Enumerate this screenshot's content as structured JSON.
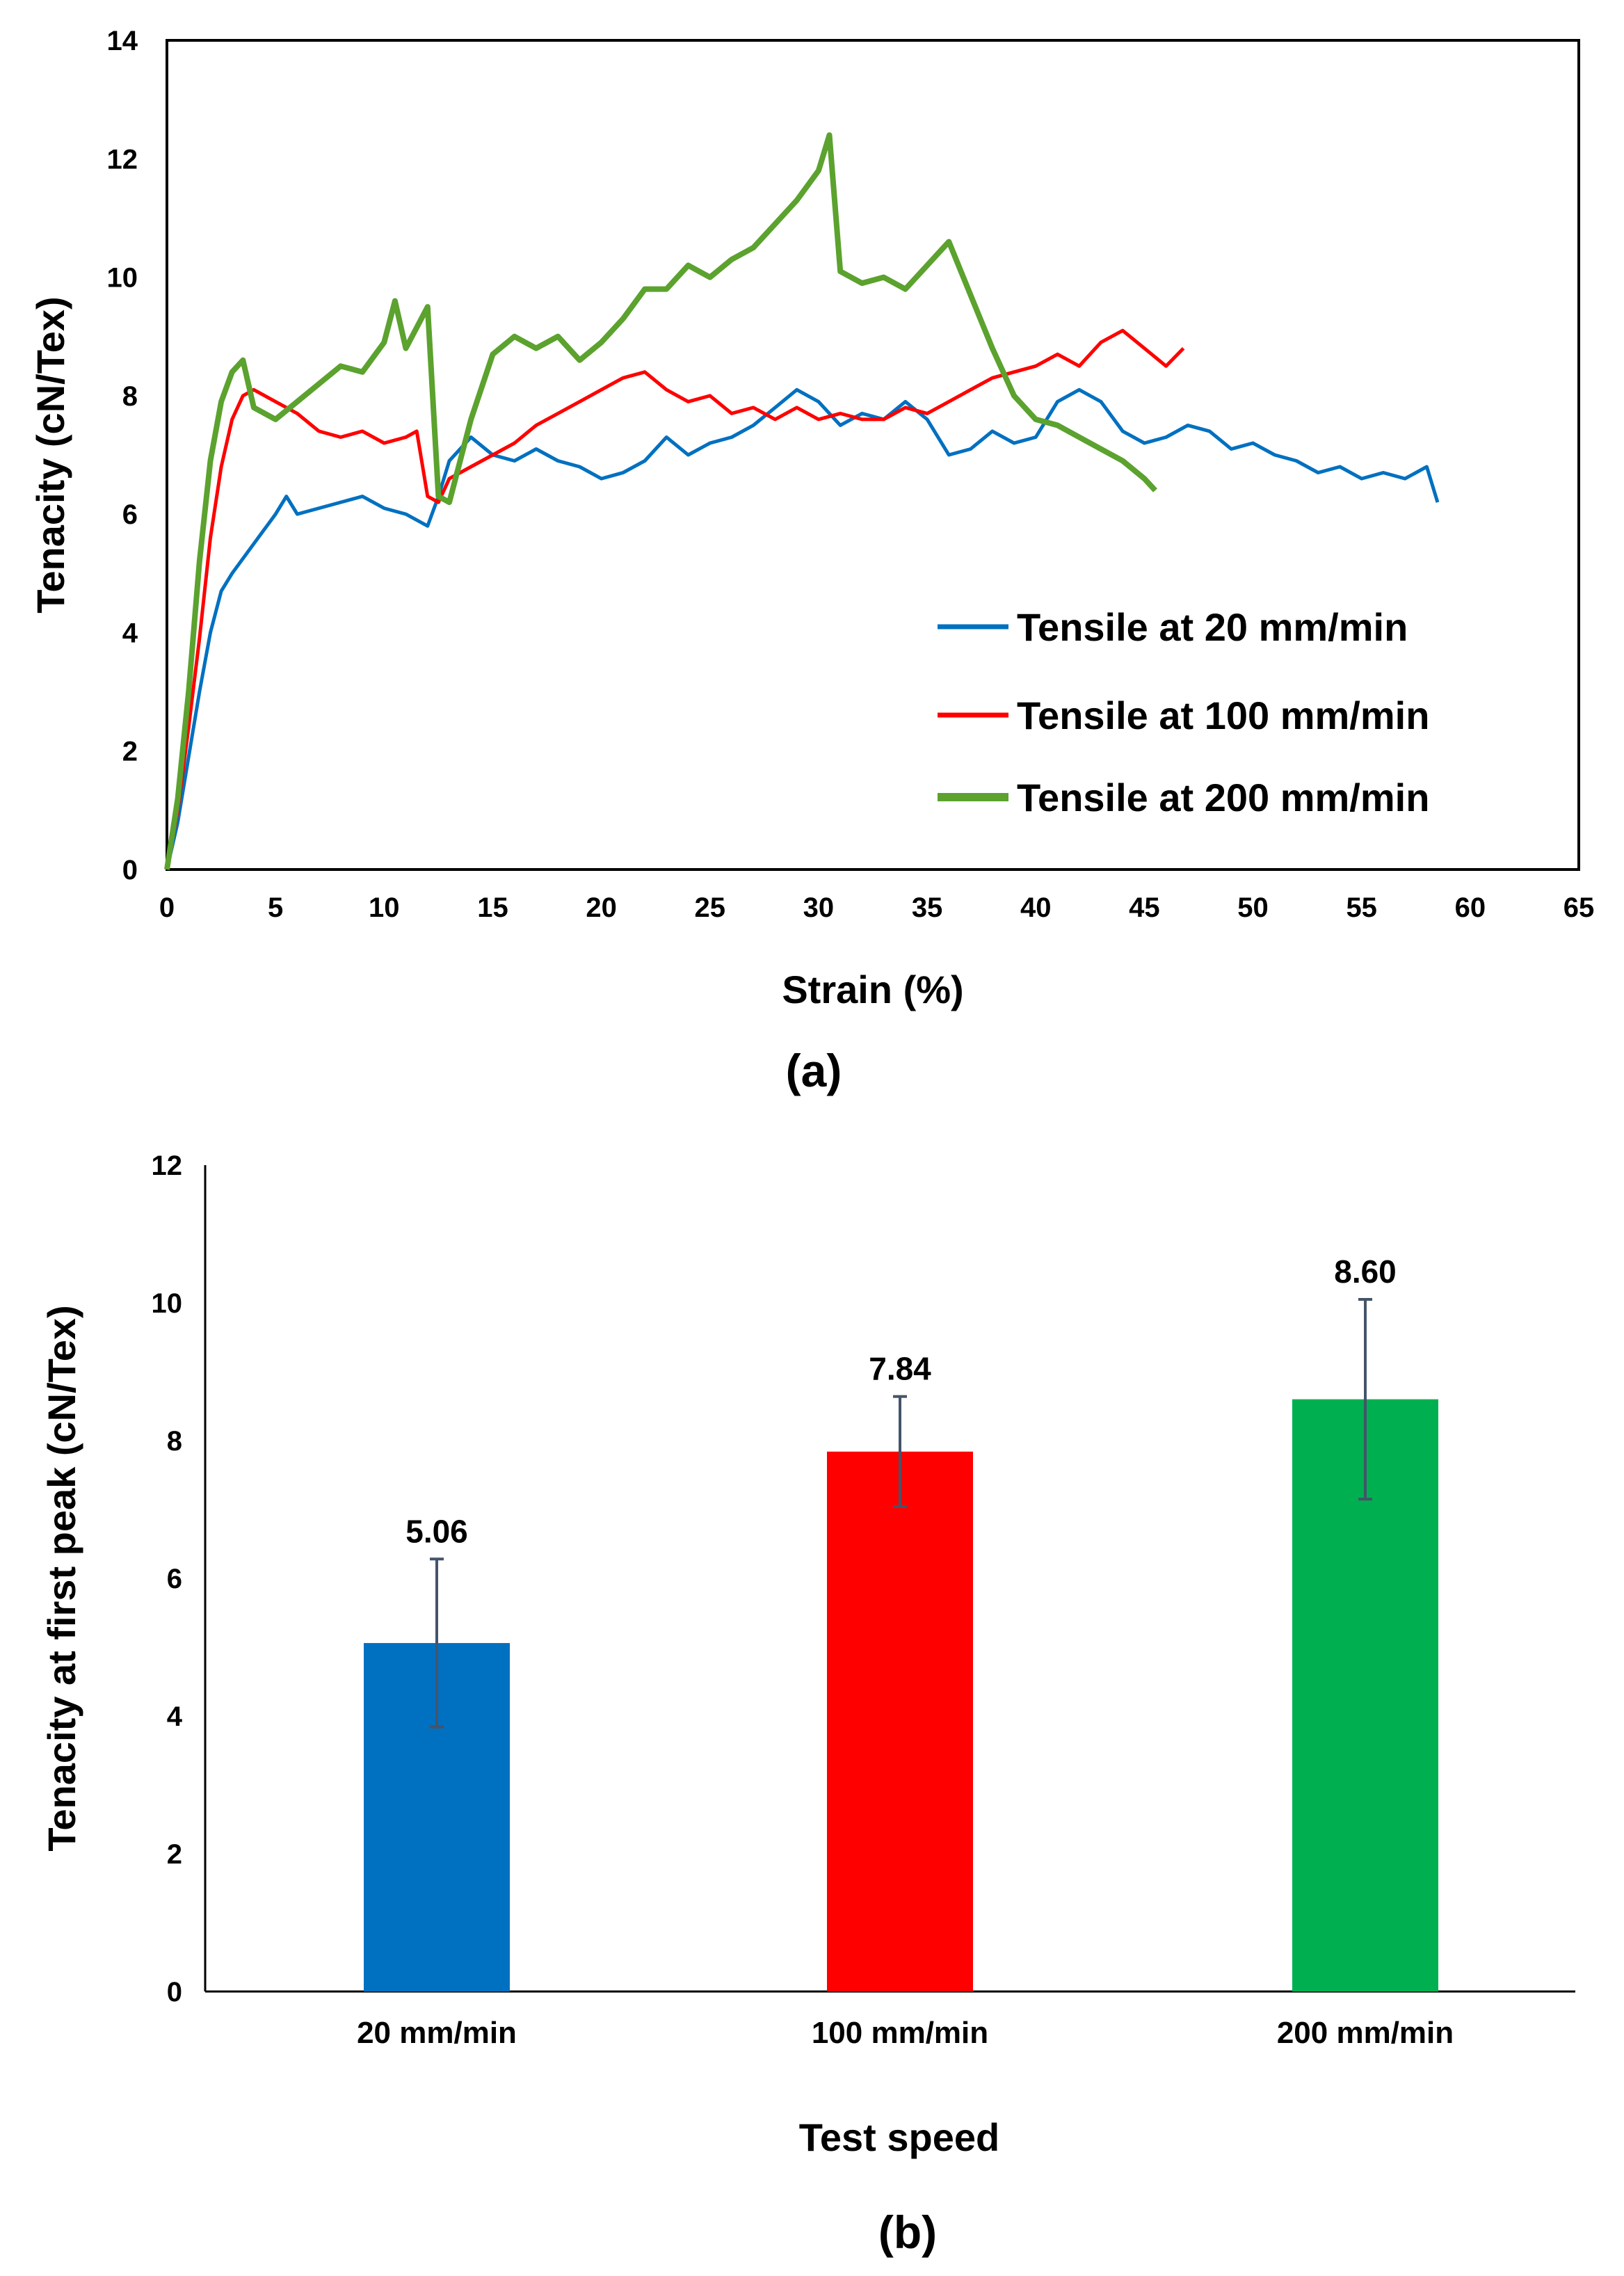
{
  "chart_data": [
    {
      "panel_label": "(a)",
      "type": "line",
      "xlabel": "Strain (%)",
      "ylabel": "Tenacity (cN/Tex)",
      "xlim": [
        0,
        65
      ],
      "ylim": [
        0,
        14
      ],
      "xticks": [
        0,
        5,
        10,
        15,
        20,
        25,
        30,
        35,
        40,
        45,
        50,
        55,
        60,
        65
      ],
      "yticks": [
        0,
        2,
        4,
        6,
        8,
        10,
        12,
        14
      ],
      "grid": false,
      "legend_position": "bottom-right",
      "series": [
        {
          "name": "Tensile at 20 mm/min",
          "color": "#0070C0",
          "points": [
            [
              0,
              0
            ],
            [
              0.5,
              0.8
            ],
            [
              1,
              1.9
            ],
            [
              1.5,
              3.0
            ],
            [
              2,
              4.0
            ],
            [
              2.5,
              4.7
            ],
            [
              3,
              5.0
            ],
            [
              4,
              5.5
            ],
            [
              5,
              6.0
            ],
            [
              5.5,
              6.3
            ],
            [
              6,
              6.0
            ],
            [
              7,
              6.1
            ],
            [
              8,
              6.2
            ],
            [
              9,
              6.3
            ],
            [
              10,
              6.1
            ],
            [
              11,
              6.0
            ],
            [
              12,
              5.8
            ],
            [
              12.5,
              6.3
            ],
            [
              13,
              6.9
            ],
            [
              14,
              7.3
            ],
            [
              15,
              7.0
            ],
            [
              16,
              6.9
            ],
            [
              17,
              7.1
            ],
            [
              18,
              6.9
            ],
            [
              19,
              6.8
            ],
            [
              20,
              6.6
            ],
            [
              21,
              6.7
            ],
            [
              22,
              6.9
            ],
            [
              23,
              7.3
            ],
            [
              24,
              7.0
            ],
            [
              25,
              7.2
            ],
            [
              26,
              7.3
            ],
            [
              27,
              7.5
            ],
            [
              28,
              7.8
            ],
            [
              29,
              8.1
            ],
            [
              30,
              7.9
            ],
            [
              31,
              7.5
            ],
            [
              32,
              7.7
            ],
            [
              33,
              7.6
            ],
            [
              34,
              7.9
            ],
            [
              35,
              7.6
            ],
            [
              36,
              7.0
            ],
            [
              37,
              7.1
            ],
            [
              38,
              7.4
            ],
            [
              39,
              7.2
            ],
            [
              40,
              7.3
            ],
            [
              41,
              7.9
            ],
            [
              42,
              8.1
            ],
            [
              43,
              7.9
            ],
            [
              44,
              7.4
            ],
            [
              45,
              7.2
            ],
            [
              46,
              7.3
            ],
            [
              47,
              7.5
            ],
            [
              48,
              7.4
            ],
            [
              49,
              7.1
            ],
            [
              50,
              7.2
            ],
            [
              51,
              7.0
            ],
            [
              52,
              6.9
            ],
            [
              53,
              6.7
            ],
            [
              54,
              6.8
            ],
            [
              55,
              6.6
            ],
            [
              56,
              6.7
            ],
            [
              57,
              6.6
            ],
            [
              58,
              6.8
            ],
            [
              58.5,
              6.2
            ]
          ]
        },
        {
          "name": "Tensile at 100 mm/min",
          "color": "#FF0000",
          "points": [
            [
              0,
              0
            ],
            [
              0.5,
              1.0
            ],
            [
              1,
              2.4
            ],
            [
              1.5,
              3.9
            ],
            [
              2,
              5.6
            ],
            [
              2.5,
              6.8
            ],
            [
              3,
              7.6
            ],
            [
              3.5,
              8.0
            ],
            [
              4,
              8.1
            ],
            [
              5,
              7.9
            ],
            [
              6,
              7.7
            ],
            [
              7,
              7.4
            ],
            [
              8,
              7.3
            ],
            [
              9,
              7.4
            ],
            [
              10,
              7.2
            ],
            [
              11,
              7.3
            ],
            [
              11.5,
              7.4
            ],
            [
              12,
              6.3
            ],
            [
              12.5,
              6.2
            ],
            [
              13,
              6.6
            ],
            [
              14,
              6.8
            ],
            [
              15,
              7.0
            ],
            [
              16,
              7.2
            ],
            [
              17,
              7.5
            ],
            [
              18,
              7.7
            ],
            [
              19,
              7.9
            ],
            [
              20,
              8.1
            ],
            [
              21,
              8.3
            ],
            [
              22,
              8.4
            ],
            [
              23,
              8.1
            ],
            [
              24,
              7.9
            ],
            [
              25,
              8.0
            ],
            [
              26,
              7.7
            ],
            [
              27,
              7.8
            ],
            [
              28,
              7.6
            ],
            [
              29,
              7.8
            ],
            [
              30,
              7.6
            ],
            [
              31,
              7.7
            ],
            [
              32,
              7.6
            ],
            [
              33,
              7.6
            ],
            [
              34,
              7.8
            ],
            [
              35,
              7.7
            ],
            [
              36,
              7.9
            ],
            [
              37,
              8.1
            ],
            [
              38,
              8.3
            ],
            [
              39,
              8.4
            ],
            [
              40,
              8.5
            ],
            [
              41,
              8.7
            ],
            [
              42,
              8.5
            ],
            [
              43,
              8.9
            ],
            [
              44,
              9.1
            ],
            [
              45,
              8.8
            ],
            [
              46,
              8.5
            ],
            [
              46.8,
              8.8
            ]
          ]
        },
        {
          "name": "Tensile at 200 mm/min",
          "color": "#5BA22E",
          "points": [
            [
              0,
              0
            ],
            [
              0.5,
              1.2
            ],
            [
              1,
              3.0
            ],
            [
              1.5,
              5.2
            ],
            [
              2,
              6.9
            ],
            [
              2.5,
              7.9
            ],
            [
              3,
              8.4
            ],
            [
              3.5,
              8.6
            ],
            [
              4,
              7.8
            ],
            [
              5,
              7.6
            ],
            [
              6,
              7.9
            ],
            [
              7,
              8.2
            ],
            [
              8,
              8.5
            ],
            [
              9,
              8.4
            ],
            [
              10,
              8.9
            ],
            [
              10.5,
              9.6
            ],
            [
              11,
              8.8
            ],
            [
              12,
              9.5
            ],
            [
              12.5,
              6.3
            ],
            [
              13,
              6.2
            ],
            [
              14,
              7.6
            ],
            [
              15,
              8.7
            ],
            [
              16,
              9.0
            ],
            [
              17,
              8.8
            ],
            [
              18,
              9.0
            ],
            [
              19,
              8.6
            ],
            [
              20,
              8.9
            ],
            [
              21,
              9.3
            ],
            [
              22,
              9.8
            ],
            [
              23,
              9.8
            ],
            [
              24,
              10.2
            ],
            [
              25,
              10.0
            ],
            [
              26,
              10.3
            ],
            [
              27,
              10.5
            ],
            [
              28,
              10.9
            ],
            [
              29,
              11.3
            ],
            [
              30,
              11.8
            ],
            [
              30.5,
              12.4
            ],
            [
              31,
              10.1
            ],
            [
              32,
              9.9
            ],
            [
              33,
              10.0
            ],
            [
              34,
              9.8
            ],
            [
              35,
              10.2
            ],
            [
              36,
              10.6
            ],
            [
              37,
              9.7
            ],
            [
              38,
              8.8
            ],
            [
              39,
              8.0
            ],
            [
              40,
              7.6
            ],
            [
              41,
              7.5
            ],
            [
              42,
              7.3
            ],
            [
              43,
              7.1
            ],
            [
              44,
              6.9
            ],
            [
              45,
              6.6
            ],
            [
              45.5,
              6.4
            ]
          ]
        }
      ]
    },
    {
      "panel_label": "(b)",
      "type": "bar",
      "xlabel": "Test speed",
      "ylabel": "Tenacity at first peak (cN/Tex)",
      "ylim": [
        0,
        12
      ],
      "yticks": [
        0,
        2,
        4,
        6,
        8,
        10,
        12
      ],
      "grid": false,
      "categories": [
        "20 mm/min",
        "100 mm/min",
        "200 mm/min"
      ],
      "values": [
        5.06,
        7.84,
        8.6
      ],
      "value_labels": [
        "5.06",
        "7.84",
        "8.60"
      ],
      "errors": [
        1.22,
        0.8,
        1.45
      ],
      "colors": [
        "#0070C0",
        "#FF0000",
        "#00B050"
      ],
      "error_color": "#44546A"
    }
  ]
}
